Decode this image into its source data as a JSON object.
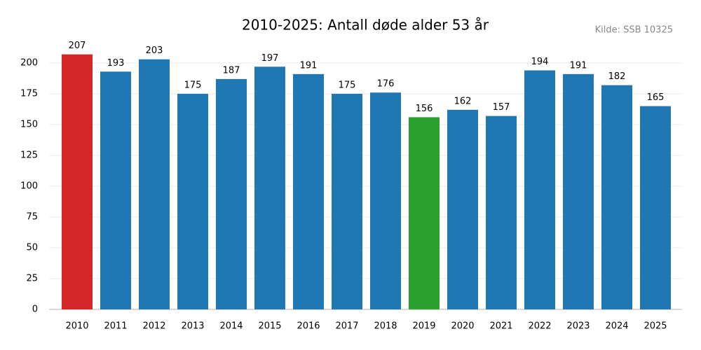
{
  "chart_data": {
    "type": "bar",
    "title": "2010-2025: Antall døde alder 53 år",
    "source": "Kilde: SSB 10325",
    "categories": [
      "2010",
      "2011",
      "2012",
      "2013",
      "2014",
      "2015",
      "2016",
      "2017",
      "2018",
      "2019",
      "2020",
      "2021",
      "2022",
      "2023",
      "2024",
      "2025"
    ],
    "values": [
      207,
      193,
      203,
      175,
      187,
      197,
      191,
      175,
      176,
      156,
      162,
      157,
      194,
      191,
      182,
      165
    ],
    "colors": [
      "#d62728",
      "#1f77b4",
      "#1f77b4",
      "#1f77b4",
      "#1f77b4",
      "#1f77b4",
      "#1f77b4",
      "#1f77b4",
      "#1f77b4",
      "#2ca02c",
      "#1f77b4",
      "#1f77b4",
      "#1f77b4",
      "#1f77b4",
      "#1f77b4",
      "#1f77b4"
    ],
    "ylim": [
      0,
      215
    ],
    "yticks": [
      0,
      25,
      50,
      75,
      100,
      125,
      150,
      175,
      200
    ],
    "grid": true
  }
}
